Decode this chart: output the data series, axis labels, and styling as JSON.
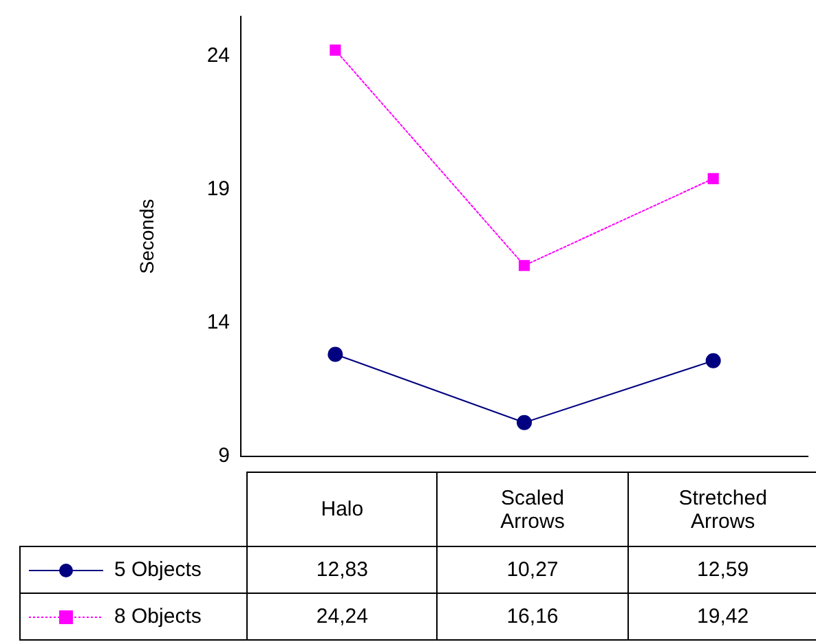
{
  "chart_data": {
    "type": "line",
    "ylabel": "Seconds",
    "categories": [
      "Halo",
      "Scaled Arrows",
      "Stretched Arrows"
    ],
    "ylim": [
      9,
      25.5
    ],
    "yticks": [
      9,
      14,
      19,
      24
    ],
    "grid": false,
    "legend": "bottom",
    "series": [
      {
        "name": "5 Objects",
        "color": "#000080",
        "marker": "circle",
        "line_style": "solid",
        "values": [
          12.83,
          10.27,
          12.59
        ],
        "value_labels": [
          "12,83",
          "10,27",
          "12,59"
        ]
      },
      {
        "name": "8 Objects",
        "color": "#ff00ff",
        "marker": "square",
        "line_style": "dotted",
        "values": [
          24.24,
          16.16,
          19.42
        ],
        "value_labels": [
          "24,24",
          "16,16",
          "19,42"
        ]
      }
    ]
  }
}
